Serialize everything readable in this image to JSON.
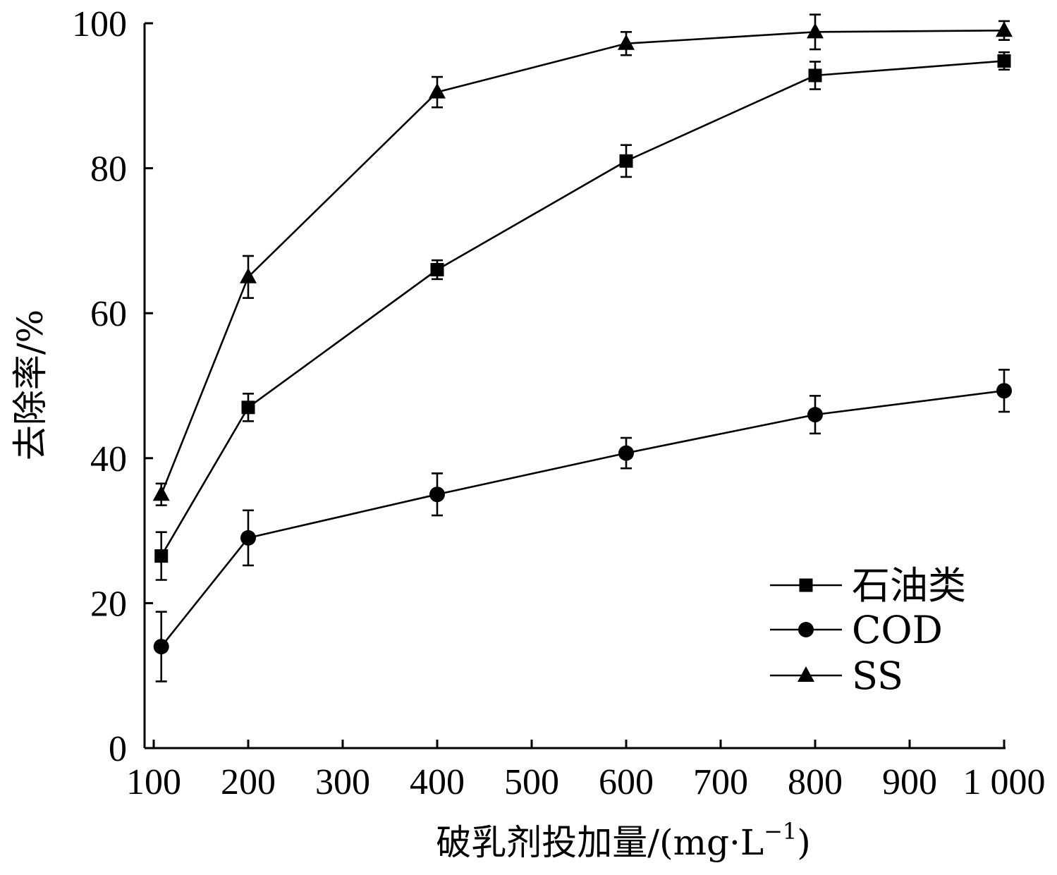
{
  "chart_data": {
    "type": "line",
    "xlabel": "破乳剂投加量/(mg·L",
    "xlabel_sup": "−1",
    "xlabel_close": ")",
    "ylabel": "去除率/%",
    "xlim": [
      100,
      1000
    ],
    "ylim": [
      0,
      100
    ],
    "x_ticks": [
      100,
      200,
      300,
      400,
      500,
      600,
      700,
      800,
      900,
      1000
    ],
    "x_tick_labels": [
      "100",
      "200",
      "300",
      "400",
      "500",
      "600",
      "700",
      "800",
      "900",
      "1 000"
    ],
    "y_ticks": [
      0,
      20,
      40,
      60,
      80,
      100
    ],
    "y_tick_labels": [
      "0",
      "20",
      "40",
      "60",
      "80",
      "100"
    ],
    "x": [
      108,
      200,
      400,
      600,
      800,
      1000
    ],
    "legend_position": "bottom-right",
    "series": [
      {
        "name": "石油类",
        "marker": "square",
        "values": [
          26.5,
          47.0,
          66.0,
          81.0,
          92.8,
          94.8
        ],
        "errors": [
          3.3,
          1.9,
          1.3,
          2.2,
          1.9,
          1.2
        ]
      },
      {
        "name": "COD",
        "marker": "circle",
        "values": [
          14.0,
          29.0,
          35.0,
          40.7,
          46.0,
          49.3
        ],
        "errors": [
          4.8,
          3.8,
          2.9,
          2.1,
          2.6,
          2.9
        ]
      },
      {
        "name": "SS",
        "marker": "triangle",
        "values": [
          35.0,
          65.0,
          90.5,
          97.2,
          98.8,
          99.0
        ],
        "errors": [
          1.5,
          2.9,
          2.1,
          1.6,
          2.4,
          1.3
        ]
      }
    ]
  }
}
